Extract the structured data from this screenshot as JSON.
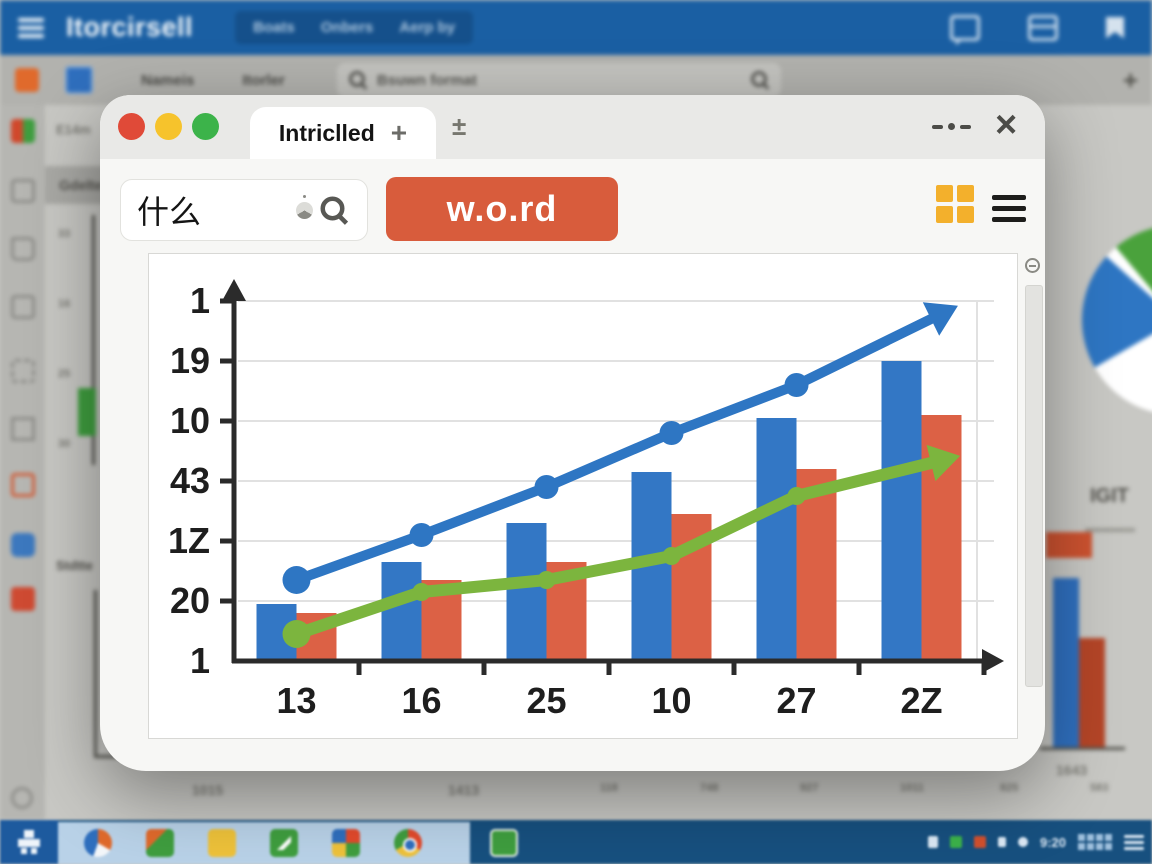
{
  "colors": {
    "appbar_blue": "#1a5fa3",
    "taskbar_dark": "#17507f",
    "taskbar_light": "#b9d2e8",
    "bar_blue": "#3377c5",
    "bar_orange": "#dc6145",
    "line_blue": "#2e76c3",
    "line_green": "#7cb53e",
    "word_button": "#d85c3c",
    "grid_icon_yellow": "#f3b02c",
    "traffic_red": "#e04a38",
    "traffic_yellow": "#f6c32c",
    "traffic_green": "#3cb34a"
  },
  "background": {
    "appbar": {
      "logo": "Itorcirsell",
      "menu": [
        "Boats",
        "Onbers",
        "Aerp by"
      ]
    },
    "toolbar": {
      "nav": [
        "Nameis",
        "Itorler"
      ],
      "search_placeholder": "Bsuwn format",
      "new_tab": "+"
    },
    "left_panel": {
      "header": "Gdelte",
      "top_label": "E14m",
      "caption": "Stdtte",
      "tick_labels": [
        "33",
        "16",
        "25",
        "30"
      ],
      "x_labels": [
        "1015",
        "1413"
      ]
    },
    "right_panel": {
      "caption": "IGIT",
      "x_label": "1643"
    },
    "bottom_labels": [
      "118",
      "748",
      "927",
      "1011",
      "825",
      "583"
    ],
    "taskbar": {
      "clock": "9:20"
    }
  },
  "window": {
    "titlebar": {
      "tab_title": "Intriclled",
      "new_tab": "+",
      "download": "±",
      "close": "×"
    },
    "toolbar": {
      "search_value": "什么",
      "word_button": "w.o.rd"
    }
  },
  "chart_data": {
    "type": "combo-bar-line",
    "title": "",
    "categories": [
      "13",
      "16",
      "25",
      "10",
      "27",
      "2Z"
    ],
    "y_tick_labels_top_to_bottom": [
      "1",
      "19",
      "10",
      "43",
      "1Z",
      "20",
      "1"
    ],
    "value_axis": {
      "min": 0,
      "max": 6.5,
      "gridlines": 6,
      "unit_per_gridline": 1
    },
    "grid": true,
    "legend": "none",
    "series": [
      {
        "name": "blue bars",
        "type": "bar",
        "color": "#3377c5",
        "values": [
          0.95,
          1.65,
          2.3,
          3.15,
          4.05,
          5.0
        ]
      },
      {
        "name": "orange bars",
        "type": "bar",
        "color": "#dc6145",
        "values": [
          0.8,
          1.35,
          1.65,
          2.45,
          3.2,
          4.1
        ]
      },
      {
        "name": "blue line",
        "type": "line",
        "color": "#2e76c3",
        "markers": true,
        "arrow_end": true,
        "values": [
          1.35,
          2.1,
          2.9,
          3.8,
          4.6,
          5.7
        ]
      },
      {
        "name": "green line",
        "type": "line",
        "color": "#7cb53e",
        "markers": true,
        "arrow_end": true,
        "values": [
          0.45,
          1.15,
          1.35,
          1.75,
          2.75,
          3.3
        ]
      }
    ]
  }
}
